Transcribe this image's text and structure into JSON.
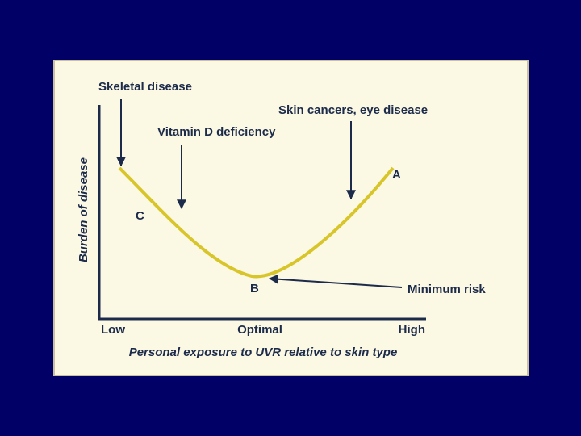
{
  "annotations": {
    "skeletal": "Skeletal disease",
    "vitamin_d": "Vitamin D deficiency",
    "skin": "Skin cancers, eye disease",
    "minimum": "Minimum risk"
  },
  "points": {
    "a": "A",
    "b": "B",
    "c": "C"
  },
  "axes": {
    "y_label": "Burden of disease",
    "x_label": "Personal exposure to UVR relative to skin type",
    "x_ticks": [
      "Low",
      "Optimal",
      "High"
    ]
  }
}
